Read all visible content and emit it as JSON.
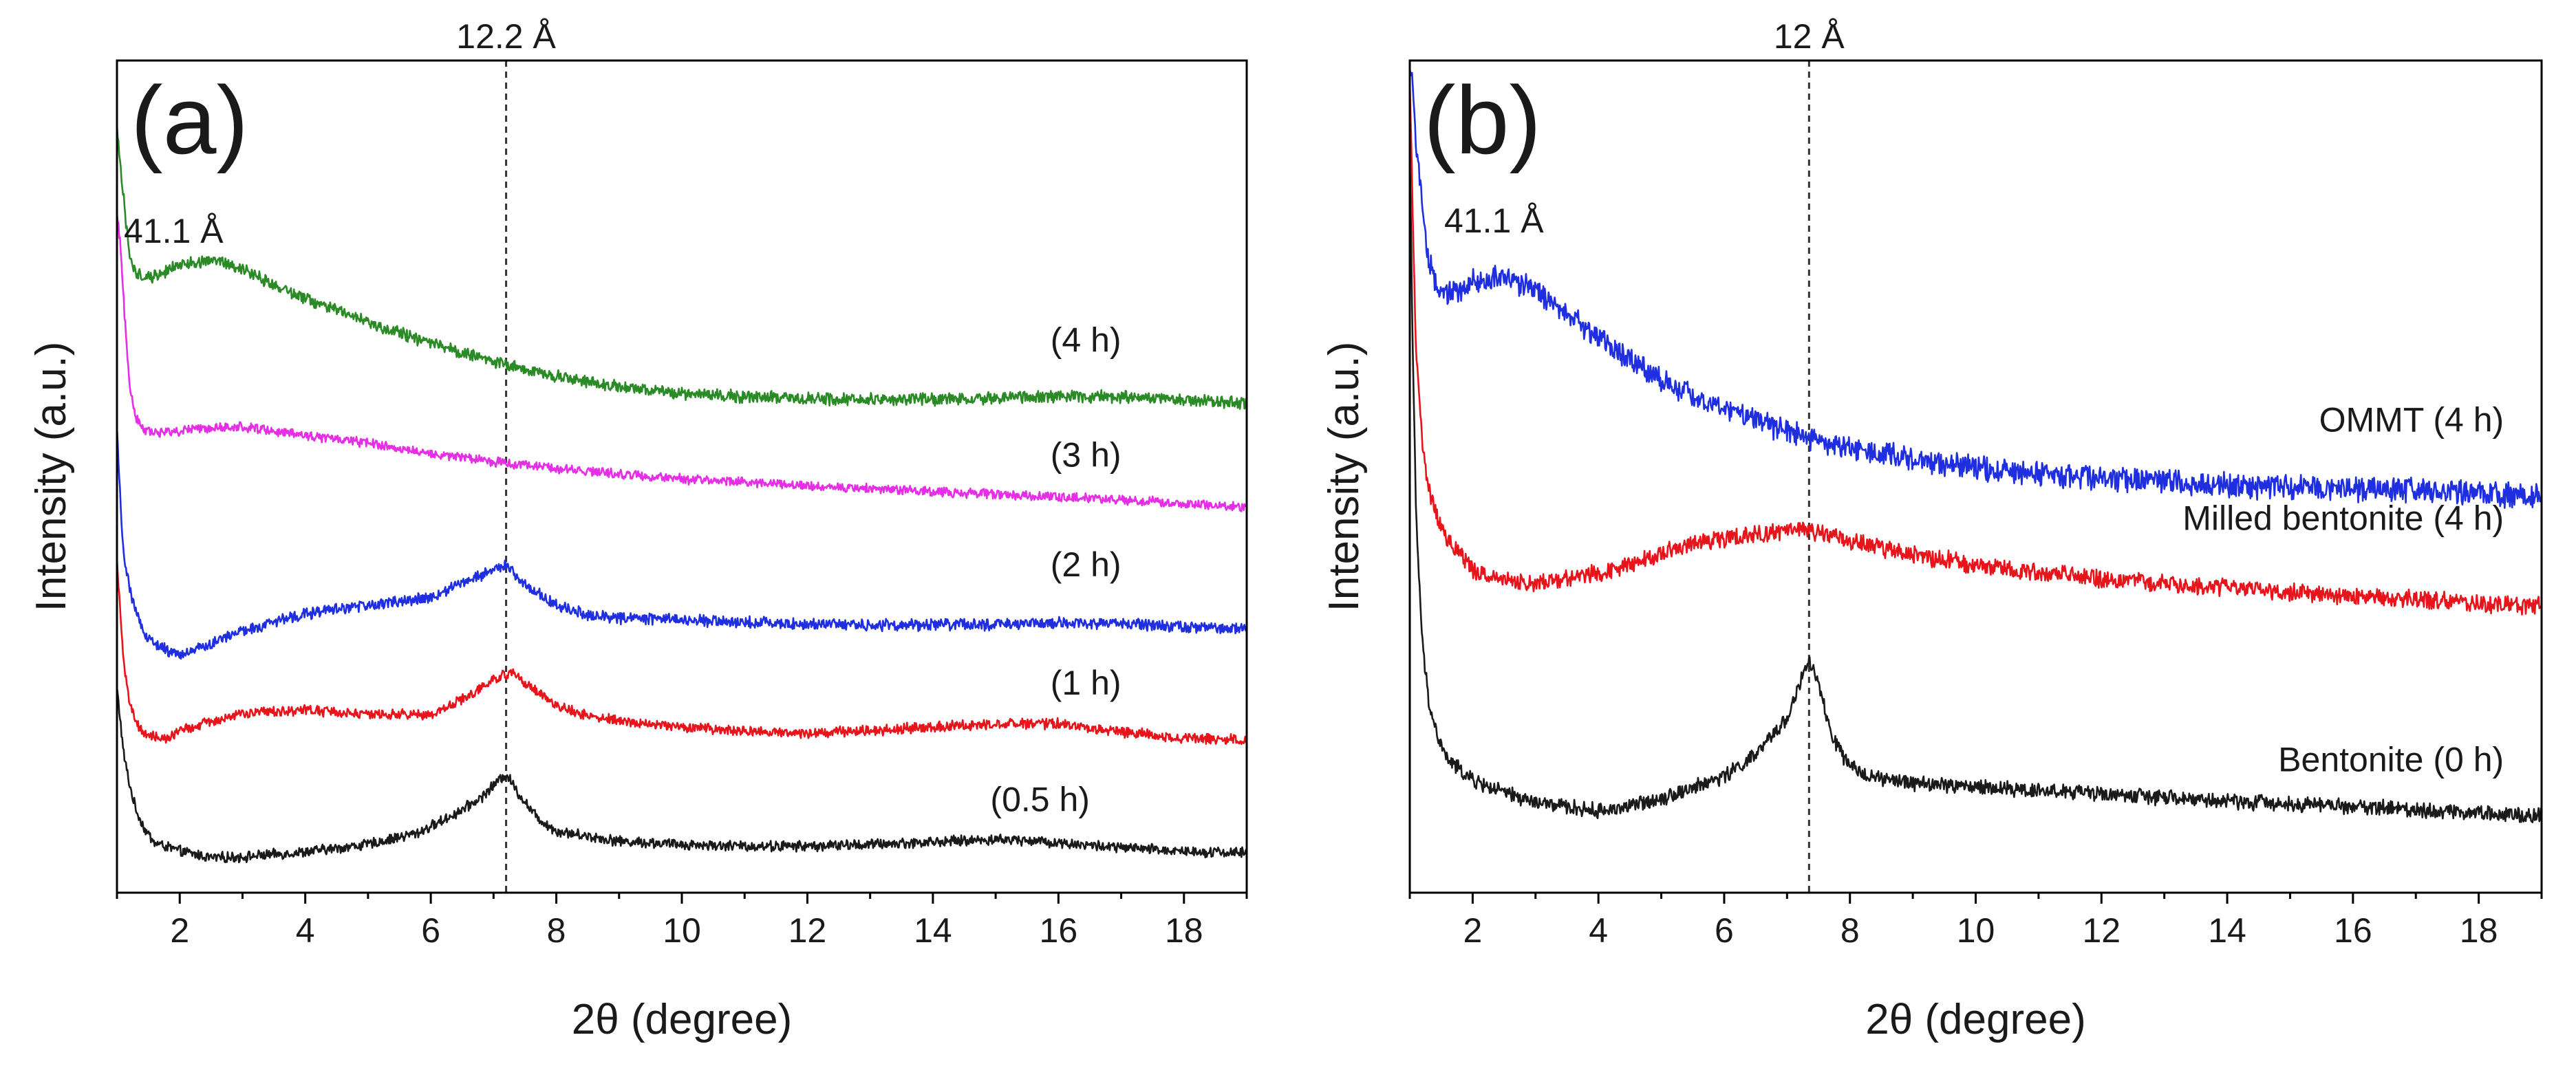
{
  "chart_data": [
    {
      "type": "line",
      "panel_label": "(a)",
      "xlabel": "2θ (degree)",
      "ylabel": "Intensity (a.u.)",
      "xlim": [
        1,
        19
      ],
      "ylim": [
        0,
        100
      ],
      "x_ticks": [
        2,
        4,
        6,
        8,
        10,
        12,
        14,
        16,
        18
      ],
      "x_tick_labels": [
        "2",
        "4",
        "6",
        "8",
        "10",
        "12",
        "14",
        "16",
        "18"
      ],
      "reference_line": {
        "x": 7.2,
        "label": "12.2 Å"
      },
      "annotation": {
        "text": "41.1 Å",
        "near_x": 1.3
      },
      "series": [
        {
          "name": "(0.5 h)",
          "color": "#1a1a1a",
          "noise": 0.55,
          "label_x": 16.5,
          "label_y": 9.8,
          "x": [
            1.0,
            1.05,
            1.1,
            1.2,
            1.3,
            1.45,
            1.6,
            2.0,
            2.5,
            3.0,
            4.0,
            5.0,
            5.8,
            6.4,
            6.8,
            7.0,
            7.2,
            7.4,
            7.7,
            8.0,
            8.5,
            9.0,
            10.0,
            11.0,
            12.0,
            13.0,
            14.0,
            15.0,
            15.5,
            16.0,
            17.0,
            18.0,
            19.0
          ],
          "y": [
            24.5,
            21.0,
            17.0,
            13.0,
            10.0,
            7.5,
            6.0,
            5.0,
            4.2,
            4.3,
            4.9,
            5.8,
            7.2,
            9.5,
            11.4,
            12.9,
            14.3,
            11.9,
            9.0,
            7.4,
            6.8,
            6.2,
            5.8,
            5.6,
            5.6,
            5.8,
            6.1,
            6.4,
            6.3,
            6.0,
            5.4,
            5.0,
            4.8
          ]
        },
        {
          "name": "(1 h)",
          "color": "#e8141b",
          "noise": 0.55,
          "label_x": 17.0,
          "label_y": 23.8,
          "x": [
            1.0,
            1.05,
            1.1,
            1.2,
            1.3,
            1.45,
            1.6,
            1.8,
            2.0,
            2.5,
            3.0,
            4.0,
            5.0,
            6.0,
            6.6,
            7.0,
            7.3,
            7.6,
            8.0,
            8.5,
            9.0,
            10.0,
            11.0,
            12.0,
            13.0,
            14.0,
            15.0,
            16.0,
            17.0,
            18.0,
            19.0
          ],
          "y": [
            40.0,
            34.0,
            28.0,
            23.0,
            20.5,
            19.0,
            18.7,
            18.5,
            19.4,
            20.6,
            21.5,
            22.0,
            21.4,
            21.4,
            23.6,
            25.6,
            26.5,
            24.8,
            22.4,
            21.3,
            20.6,
            19.9,
            19.4,
            19.2,
            19.5,
            19.9,
            20.3,
            20.3,
            19.3,
            18.6,
            18.4
          ]
        },
        {
          "name": "(2 h)",
          "color": "#1f2fe0",
          "noise": 0.6,
          "label_x": 17.0,
          "label_y": 38.0,
          "x": [
            1.0,
            1.05,
            1.1,
            1.2,
            1.3,
            1.45,
            1.7,
            2.0,
            2.5,
            3.0,
            4.0,
            5.0,
            6.0,
            6.7,
            7.0,
            7.2,
            7.5,
            8.0,
            8.5,
            9.0,
            10.0,
            11.0,
            12.0,
            13.0,
            14.0,
            15.0,
            16.0,
            17.0,
            18.0,
            19.0
          ],
          "y": [
            56.0,
            48.0,
            41.0,
            36.5,
            34.0,
            31.0,
            29.5,
            28.5,
            30.0,
            31.5,
            33.5,
            34.5,
            35.5,
            37.8,
            38.9,
            39.4,
            36.9,
            34.6,
            33.4,
            33.0,
            32.8,
            32.5,
            32.3,
            32.2,
            32.2,
            32.2,
            32.4,
            32.3,
            32.0,
            31.6
          ]
        },
        {
          "name": "(3 h)",
          "color": "#e62ee6",
          "noise": 0.5,
          "label_x": 17.0,
          "label_y": 51.2,
          "x": [
            1.0,
            1.05,
            1.1,
            1.15,
            1.2,
            1.3,
            1.45,
            1.6,
            2.0,
            2.5,
            3.0,
            3.5,
            4.0,
            5.0,
            6.0,
            7.0,
            8.0,
            9.0,
            10.0,
            11.0,
            12.0,
            13.0,
            14.0,
            15.0,
            16.0,
            17.0,
            18.0,
            19.0
          ],
          "y": [
            82.0,
            78.0,
            72.0,
            66.0,
            61.0,
            57.0,
            55.5,
            55.2,
            55.5,
            55.9,
            56.0,
            55.5,
            55.0,
            54.0,
            52.8,
            51.8,
            51.0,
            50.3,
            49.7,
            49.3,
            48.9,
            48.6,
            48.2,
            47.9,
            47.6,
            47.2,
            46.8,
            46.3
          ]
        },
        {
          "name": "(4 h)",
          "color": "#2a8a25",
          "noise": 0.65,
          "label_x": 17.0,
          "label_y": 65.0,
          "x": [
            1.0,
            1.05,
            1.1,
            1.15,
            1.2,
            1.3,
            1.45,
            1.6,
            2.0,
            2.5,
            3.0,
            3.5,
            4.0,
            5.0,
            6.0,
            7.0,
            8.0,
            9.0,
            10.0,
            11.0,
            12.0,
            13.0,
            14.0,
            15.0,
            16.0,
            17.0,
            18.0,
            19.0
          ],
          "y": [
            92.0,
            88.0,
            84.0,
            80.0,
            76.5,
            74.5,
            74.0,
            74.0,
            75.5,
            76.0,
            75.0,
            73.0,
            71.5,
            68.5,
            66.0,
            63.8,
            62.0,
            60.8,
            60.0,
            59.6,
            59.4,
            59.3,
            59.3,
            59.4,
            59.6,
            59.6,
            59.2,
            58.8
          ]
        }
      ]
    },
    {
      "type": "line",
      "panel_label": "(b)",
      "xlabel": "2θ (degree)",
      "ylabel": "Intensity (a.u.)",
      "xlim": [
        1,
        19
      ],
      "ylim": [
        0,
        100
      ],
      "x_ticks": [
        2,
        4,
        6,
        8,
        10,
        12,
        14,
        16,
        18
      ],
      "x_tick_labels": [
        "2",
        "4",
        "6",
        "8",
        "10",
        "12",
        "14",
        "16",
        "18"
      ],
      "reference_line": {
        "x": 7.35,
        "label": "12 Å"
      },
      "annotation": {
        "text": "41.1 Å",
        "near_x": 1.5
      },
      "series": [
        {
          "name": "Bentonite (0 h)",
          "color": "#1a1a1a",
          "noise": 0.8,
          "label_x": 18.4,
          "label_y": 14.6,
          "x": [
            1.0,
            1.05,
            1.1,
            1.2,
            1.3,
            1.45,
            1.6,
            2.0,
            2.5,
            3.0,
            3.5,
            4.0,
            4.5,
            5.0,
            5.5,
            6.0,
            6.5,
            7.0,
            7.2,
            7.35,
            7.5,
            7.7,
            8.0,
            8.5,
            9.0,
            10.0,
            11.0,
            12.0,
            13.0,
            14.0,
            15.0,
            16.0,
            17.0,
            18.0,
            19.0
          ],
          "y": [
            90.0,
            64.0,
            45.0,
            30.0,
            23.0,
            18.5,
            16.0,
            13.5,
            12.0,
            10.8,
            10.3,
            9.8,
            10.4,
            11.4,
            12.6,
            14.0,
            16.5,
            21.0,
            25.0,
            28.0,
            25.0,
            19.0,
            15.0,
            13.6,
            13.2,
            12.7,
            12.3,
            11.9,
            11.4,
            11.0,
            10.7,
            10.4,
            10.0,
            9.6,
            9.3
          ]
        },
        {
          "name": "Milled bentonite (4 h)",
          "color": "#e8141b",
          "noise": 0.95,
          "label_x": 18.4,
          "label_y": 43.6,
          "x": [
            1.0,
            1.05,
            1.1,
            1.2,
            1.3,
            1.45,
            1.6,
            2.0,
            2.5,
            3.0,
            3.5,
            4.0,
            4.5,
            5.0,
            5.5,
            6.0,
            6.5,
            7.0,
            7.3,
            7.6,
            8.0,
            8.5,
            9.0,
            10.0,
            11.0,
            12.0,
            13.0,
            14.0,
            15.0,
            16.0,
            17.0,
            18.0,
            19.0
          ],
          "y": [
            98.0,
            80.0,
            65.0,
            54.0,
            48.5,
            45.0,
            42.5,
            38.8,
            37.5,
            37.3,
            37.8,
            38.5,
            39.5,
            40.8,
            41.9,
            42.6,
            43.0,
            43.4,
            43.6,
            43.2,
            42.3,
            41.4,
            40.6,
            39.4,
            38.4,
            37.7,
            37.1,
            36.6,
            36.1,
            35.6,
            35.2,
            34.8,
            34.4
          ]
        },
        {
          "name": "OMMT (4 h)",
          "color": "#1f2fe0",
          "noise": 1.3,
          "label_x": 18.4,
          "label_y": 55.4,
          "x": [
            1.0,
            1.05,
            1.1,
            1.15,
            1.2,
            1.3,
            1.45,
            1.6,
            1.8,
            2.0,
            2.5,
            3.0,
            3.5,
            4.0,
            5.0,
            6.0,
            7.0,
            8.0,
            9.0,
            10.0,
            11.0,
            12.0,
            13.0,
            14.0,
            15.0,
            16.0,
            17.0,
            18.0,
            19.0
          ],
          "y": [
            99.5,
            96.0,
            90.0,
            86.0,
            82.0,
            76.0,
            72.0,
            72.0,
            72.5,
            73.5,
            74.0,
            72.5,
            69.5,
            66.5,
            61.5,
            58.0,
            55.5,
            53.5,
            52.0,
            51.0,
            50.3,
            49.8,
            49.4,
            49.0,
            48.7,
            48.5,
            48.3,
            48.0,
            47.6
          ]
        }
      ]
    }
  ]
}
